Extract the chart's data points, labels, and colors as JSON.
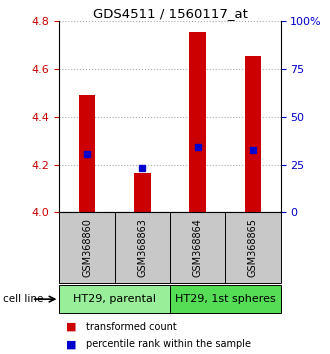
{
  "title": "GDS4511 / 1560117_at",
  "samples": [
    "GSM368860",
    "GSM368863",
    "GSM368864",
    "GSM368865"
  ],
  "bar_bottoms": [
    4.0,
    4.0,
    4.0,
    4.0
  ],
  "bar_tops": [
    4.49,
    4.165,
    4.755,
    4.655
  ],
  "percentile_values": [
    4.245,
    4.185,
    4.272,
    4.262
  ],
  "cell_lines": [
    "HT29, parental",
    "HT29, 1st spheres"
  ],
  "cell_line_spans": [
    [
      0,
      2
    ],
    [
      2,
      4
    ]
  ],
  "ylim": [
    4.0,
    4.8
  ],
  "yticks_left": [
    4.0,
    4.2,
    4.4,
    4.6,
    4.8
  ],
  "yticks_right": [
    0,
    25,
    50,
    75,
    100
  ],
  "ytick_labels_right": [
    "0",
    "25",
    "50",
    "75",
    "100%"
  ],
  "bar_color": "#cc0000",
  "dot_color": "#0000cc",
  "grid_color": "#aaaaaa",
  "sample_box_color": "#c8c8c8",
  "cell_line_color_1": "#99ee99",
  "cell_line_color_2": "#55dd55",
  "left_axis_color": "#cc0000",
  "right_axis_color": "#0000cc",
  "legend_red_label": "transformed count",
  "legend_blue_label": "percentile rank within the sample",
  "cell_line_label": "cell line",
  "bar_width": 0.3
}
